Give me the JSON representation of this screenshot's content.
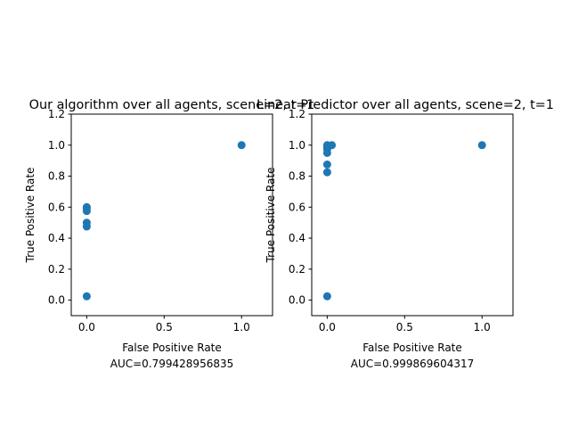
{
  "chart_data": [
    {
      "type": "scatter",
      "title": "Our algorithm over all agents, scene=2, t=1",
      "xlabel": "False Positive Rate",
      "ylabel": "True Positive Rate",
      "annotation": "AUC=0.799428956835",
      "xlim": [
        -0.1,
        1.2
      ],
      "ylim": [
        -0.1,
        1.2
      ],
      "xticks": [
        "0.0",
        "0.5",
        "1.0"
      ],
      "yticks": [
        "0.0",
        "0.2",
        "0.4",
        "0.6",
        "0.8",
        "1.0",
        "1.2"
      ],
      "marker_color": "#1f77b4",
      "grid": false,
      "x": [
        0.0,
        0.0,
        0.0,
        0.0,
        0.0,
        0.0,
        1.0
      ],
      "y": [
        0.025,
        0.475,
        0.5,
        0.575,
        0.6,
        0.59,
        1.0
      ]
    },
    {
      "type": "scatter",
      "title": "Linear Predictor over all agents, scene=2,  t=1",
      "xlabel": "False Positive Rate",
      "ylabel": "True Positive Rate",
      "annotation": "AUC=0.999869604317",
      "xlim": [
        -0.1,
        1.2
      ],
      "ylim": [
        -0.1,
        1.2
      ],
      "xticks": [
        "0.0",
        "0.5",
        "1.0"
      ],
      "yticks": [
        "0.0",
        "0.2",
        "0.4",
        "0.6",
        "0.8",
        "1.0",
        "1.2"
      ],
      "marker_color": "#1f77b4",
      "grid": false,
      "x": [
        0.0,
        0.0,
        0.0,
        0.0,
        0.0,
        0.0,
        0.0,
        0.03,
        1.0
      ],
      "y": [
        0.025,
        0.825,
        0.875,
        0.95,
        0.975,
        0.99,
        1.0,
        1.0,
        1.0
      ]
    }
  ]
}
